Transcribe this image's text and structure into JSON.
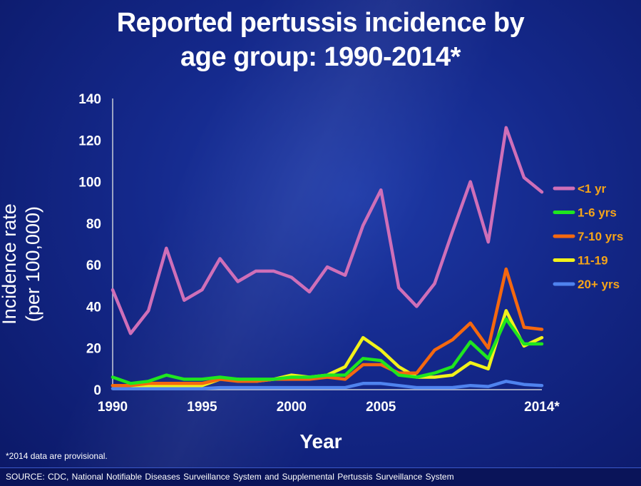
{
  "slide": {
    "title": "Reported pertussis incidence by\nage group: 1990-2014*",
    "footnote": "*2014 data are provisional.",
    "source": "SOURCE: CDC, National  Notifiable  Diseases  Surveillance  System  and  Supplemental  Pertussis  Surveillance  System"
  },
  "chart_data": {
    "type": "line",
    "title": "Reported pertussis incidence by age group: 1990-2014*",
    "xlabel": "Year",
    "ylabel": "Incidence rate\n(per 100,000)",
    "x": [
      1990,
      1991,
      1992,
      1993,
      1994,
      1995,
      1996,
      1997,
      1998,
      1999,
      2000,
      2001,
      2002,
      2003,
      2004,
      2005,
      2006,
      2007,
      2008,
      2009,
      2010,
      2011,
      2012,
      2013,
      2014
    ],
    "x_tick_labels": [
      "1990",
      "1995",
      "2000",
      "2005",
      "2014*"
    ],
    "x_tick_values": [
      1990,
      1995,
      2000,
      2005,
      2014
    ],
    "xlim": [
      1990,
      2014
    ],
    "ylim": [
      0,
      140
    ],
    "y_ticks": [
      0,
      20,
      40,
      60,
      80,
      100,
      120,
      140
    ],
    "grid": false,
    "legend_position": "right",
    "series": [
      {
        "name": "<1 yr",
        "color": "#cf6fb8",
        "values": [
          48,
          27,
          38,
          68,
          43,
          48,
          63,
          52,
          57,
          57,
          54,
          47,
          59,
          55,
          79,
          96,
          49,
          40,
          51,
          76,
          100,
          71,
          126,
          102,
          95
        ]
      },
      {
        "name": "1-6 yrs",
        "color": "#1fe61f",
        "values": [
          6,
          3,
          4,
          7,
          5,
          5,
          6,
          5,
          5,
          5,
          6,
          6,
          7,
          7,
          15,
          14,
          7,
          6,
          8,
          11,
          23,
          15,
          34,
          22,
          22
        ]
      },
      {
        "name": "7-10 yrs",
        "color": "#f5680f",
        "values": [
          2,
          2,
          3,
          3,
          3,
          3,
          5,
          4,
          4,
          5,
          5,
          5,
          6,
          5,
          12,
          12,
          8,
          8,
          19,
          24,
          32,
          20,
          58,
          30,
          29
        ]
      },
      {
        "name": "11-19",
        "color": "#f2f21a",
        "values": [
          2,
          2,
          2,
          2,
          2,
          2,
          5,
          5,
          4,
          5,
          7,
          6,
          7,
          11,
          25,
          19,
          11,
          6,
          6,
          7,
          13,
          10,
          38,
          21,
          25
        ]
      },
      {
        "name": "20+ yrs",
        "color": "#4f83ee",
        "values": [
          0.5,
          0.5,
          0.5,
          0.5,
          0.5,
          0.5,
          1,
          1,
          1,
          1,
          1,
          1,
          1,
          1,
          3,
          3,
          2,
          1,
          1,
          1,
          2,
          1.5,
          4,
          2.5,
          2
        ]
      }
    ]
  }
}
